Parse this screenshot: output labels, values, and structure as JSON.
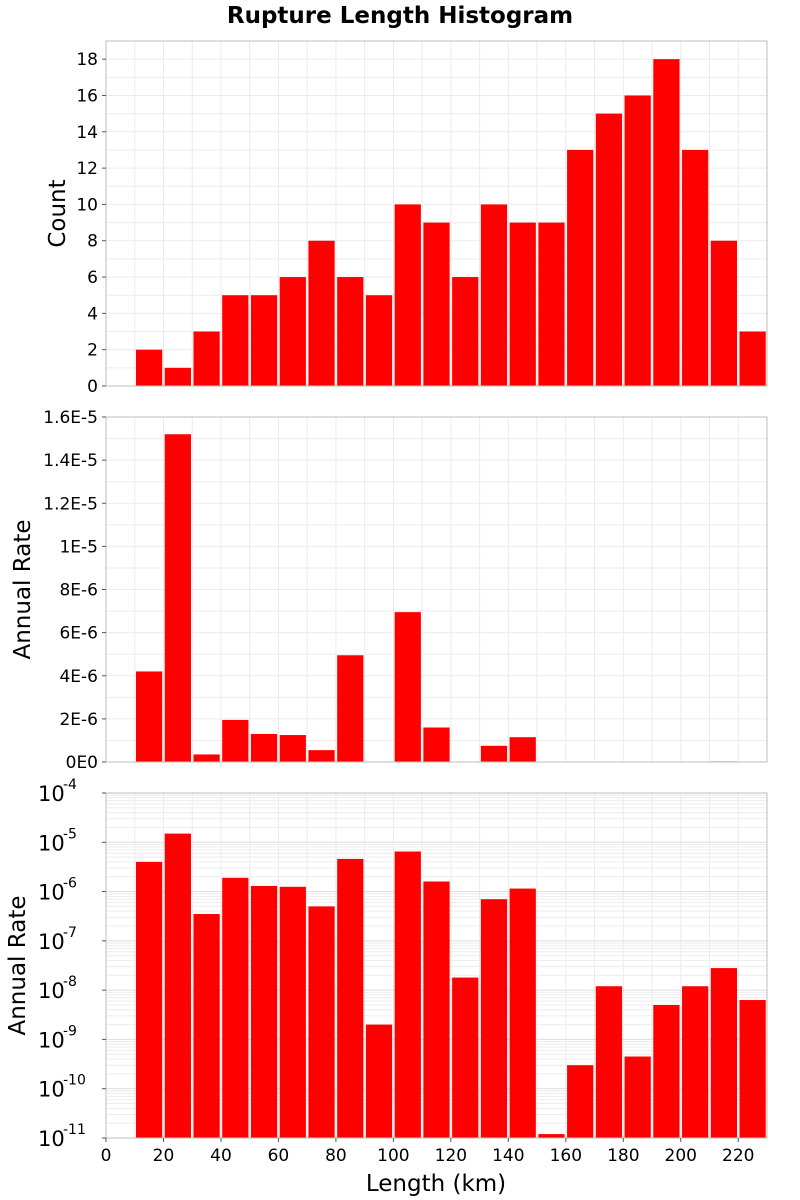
{
  "chart_data": {
    "title": "Rupture Length Histogram",
    "xlabel": "Length (km)",
    "x_ticks": [
      "0",
      "20",
      "40",
      "60",
      "80",
      "100",
      "120",
      "140",
      "160",
      "180",
      "200",
      "220"
    ],
    "xlim": [
      0,
      230
    ],
    "bin_width": 10,
    "bar_color": "#ff0000",
    "bins": [
      15,
      25,
      35,
      45,
      55,
      65,
      75,
      85,
      95,
      105,
      115,
      125,
      135,
      145,
      155,
      165,
      175,
      185,
      195,
      205,
      215,
      225
    ],
    "panels": [
      {
        "type": "bar",
        "ylabel": "Count",
        "scale": "linear",
        "ylim": [
          0,
          19
        ],
        "y_ticks": [
          "0",
          "2",
          "4",
          "6",
          "8",
          "10",
          "12",
          "14",
          "16",
          "18"
        ],
        "grid": true,
        "values": [
          2,
          1,
          3,
          5,
          5,
          6,
          8,
          6,
          5,
          10,
          9,
          6,
          10,
          9,
          9,
          13,
          15,
          16,
          18,
          13,
          8,
          3
        ]
      },
      {
        "type": "bar",
        "ylabel": "Annual Rate",
        "scale": "linear",
        "ylim": [
          0,
          1.6e-05
        ],
        "y_ticks": [
          "0E0",
          "2E-6",
          "4E-6",
          "6E-6",
          "8E-6",
          "1E-5",
          "1.2E-5",
          "1.4E-5",
          "1.6E-5"
        ],
        "grid": true,
        "values": [
          4.2e-06,
          1.52e-05,
          3.5e-07,
          1.95e-06,
          1.3e-06,
          1.25e-06,
          5.5e-07,
          4.95e-06,
          2e-09,
          6.95e-06,
          1.6e-06,
          1.8e-08,
          7.5e-07,
          1.15e-06,
          1e-11,
          3e-10,
          1.2e-08,
          4e-10,
          5e-09,
          1.2e-08,
          2.8e-08,
          6.3e-09
        ]
      },
      {
        "type": "bar",
        "ylabel": "Annual Rate",
        "scale": "log",
        "ylim": [
          1e-11,
          0.0001
        ],
        "y_ticks": [
          {
            "base": "10",
            "exp": "-11"
          },
          {
            "base": "10",
            "exp": "-10"
          },
          {
            "base": "10",
            "exp": "-9"
          },
          {
            "base": "10",
            "exp": "-8"
          },
          {
            "base": "10",
            "exp": "-7"
          },
          {
            "base": "10",
            "exp": "-6"
          },
          {
            "base": "10",
            "exp": "-5"
          },
          {
            "base": "10",
            "exp": "-4"
          }
        ],
        "grid": true,
        "values": [
          4e-06,
          1.5e-05,
          3.5e-07,
          1.9e-06,
          1.3e-06,
          1.25e-06,
          5e-07,
          4.6e-06,
          2e-09,
          6.5e-06,
          1.6e-06,
          1.8e-08,
          7e-07,
          1.15e-06,
          1.2e-11,
          3e-10,
          1.2e-08,
          4.5e-10,
          5e-09,
          1.2e-08,
          2.8e-08,
          6.3e-09
        ]
      }
    ]
  }
}
